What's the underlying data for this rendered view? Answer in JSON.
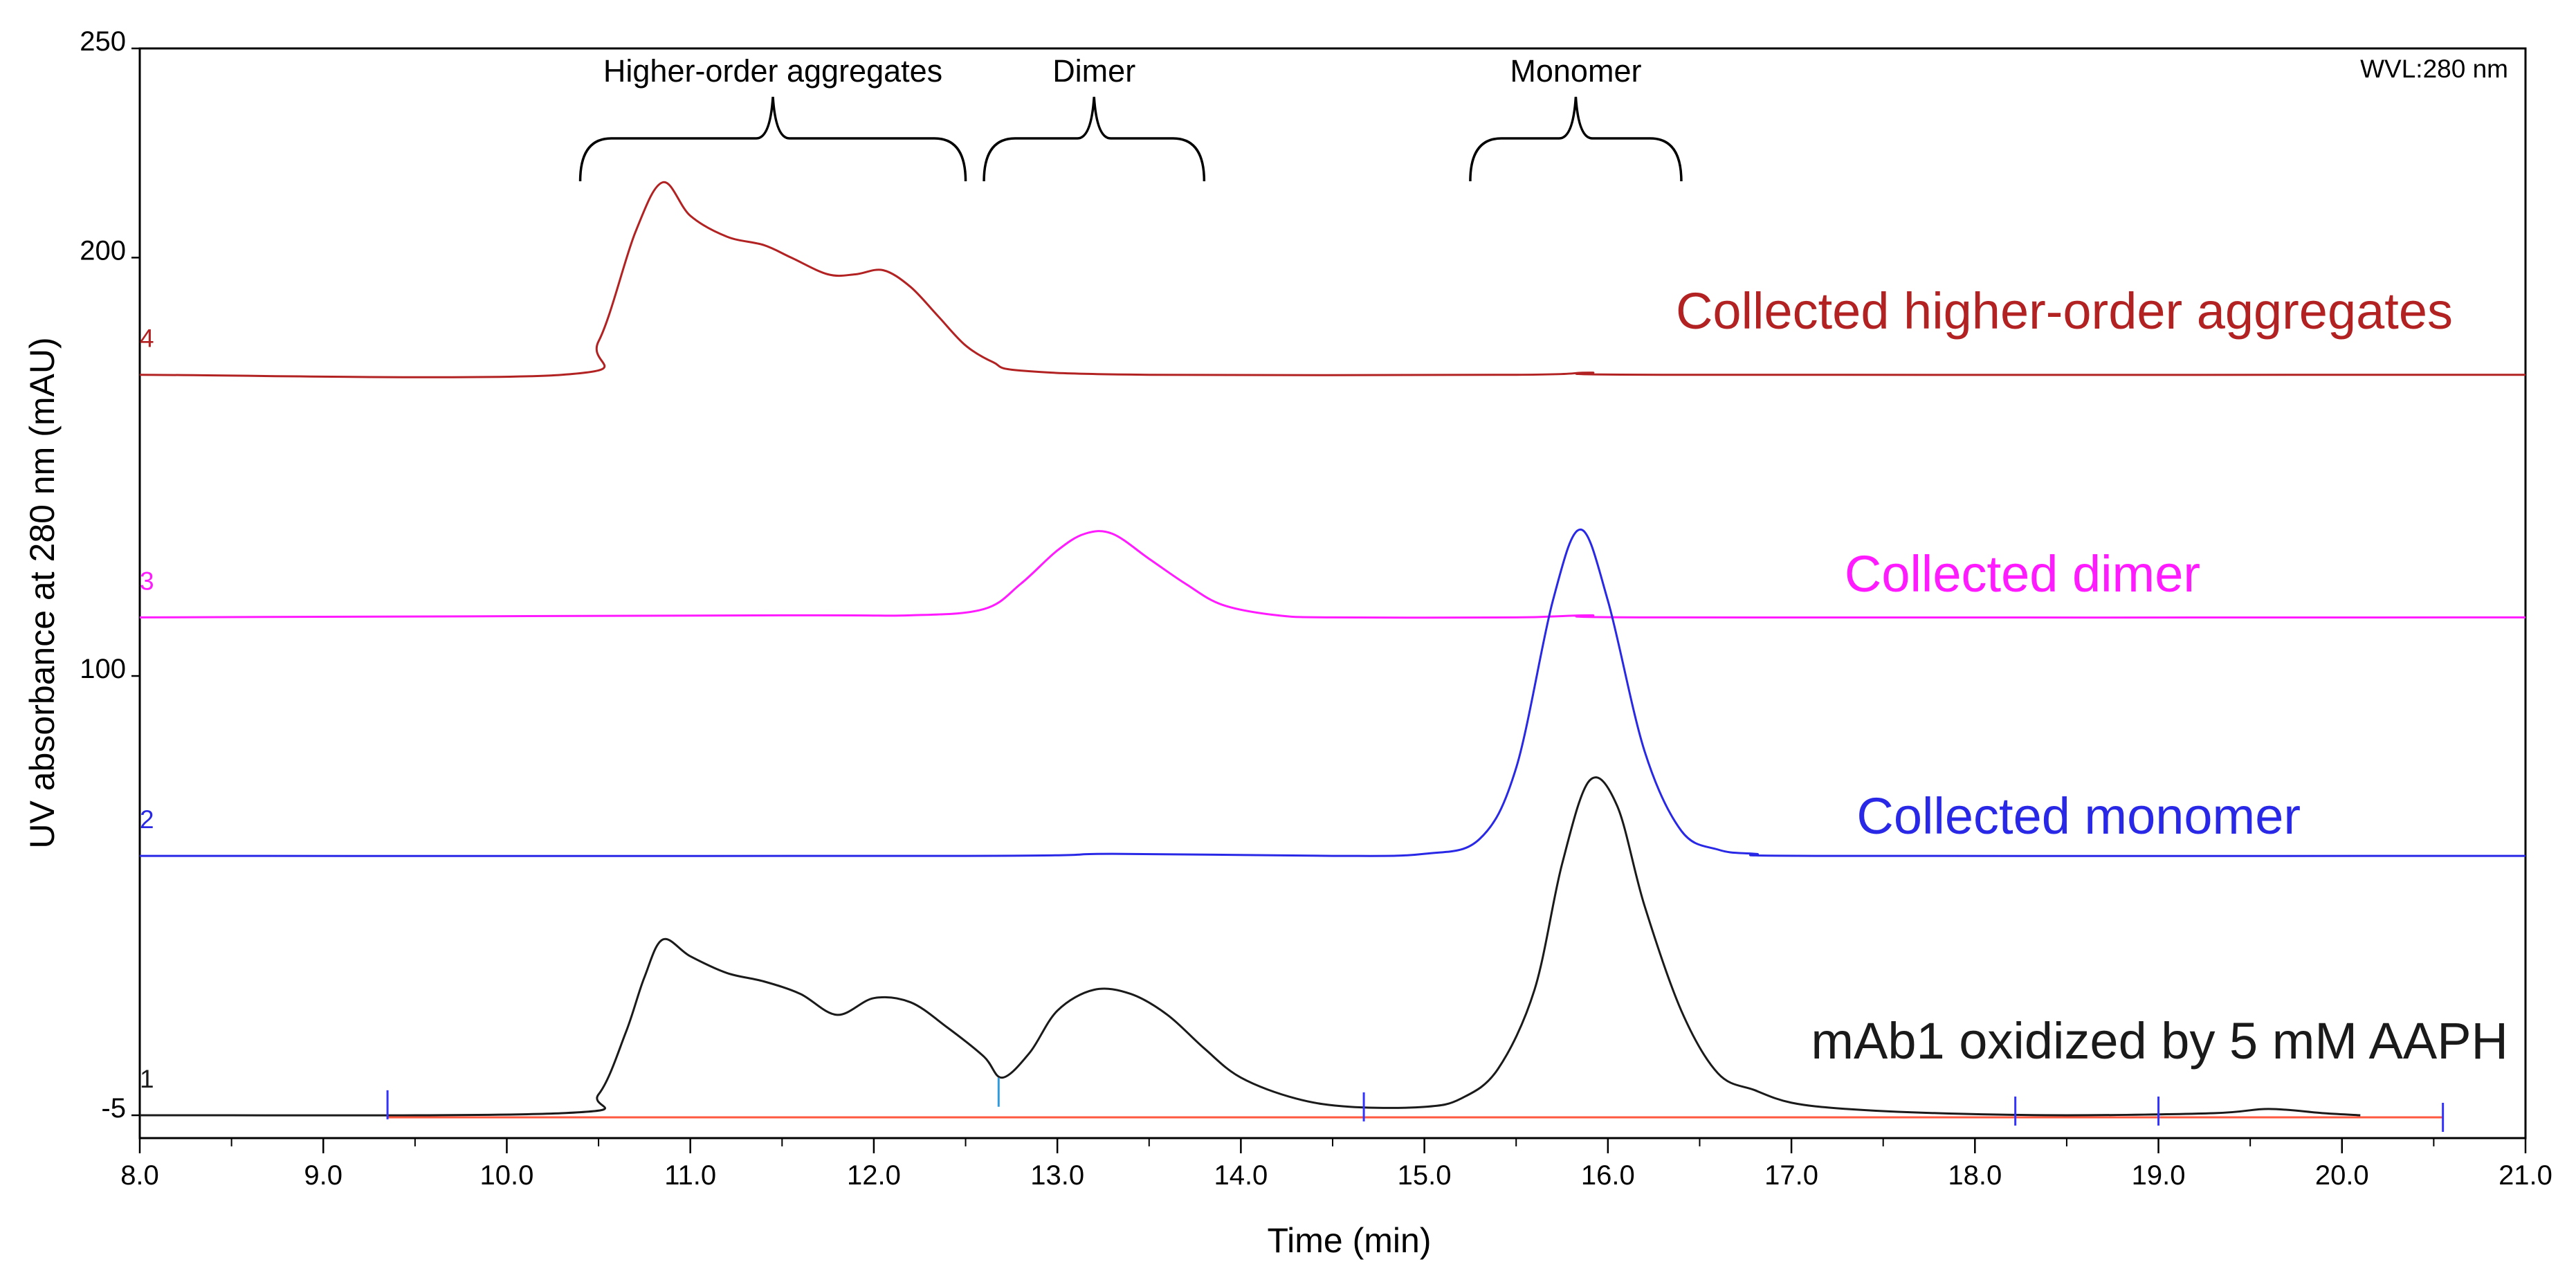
{
  "chart_data": {
    "type": "line",
    "title": "",
    "xlabel": "Time (min)",
    "ylabel": "UV absorbance at 280 nm (mAU)",
    "xlim": [
      8.0,
      21.0
    ],
    "ylim": [
      -5,
      250
    ],
    "x_ticks": [
      "8.0",
      "9.0",
      "10.0",
      "11.0",
      "12.0",
      "13.0",
      "14.0",
      "15.0",
      "16.0",
      "17.0",
      "18.0",
      "19.0",
      "20.0",
      "21.0"
    ],
    "y_ticks": [
      "250",
      "200",
      "100",
      "-5"
    ],
    "wavelength_label": "WVL:280 nm",
    "brackets": [
      {
        "label": "Higher-order aggregates",
        "start": 10.4,
        "end": 12.5
      },
      {
        "label": "Dimer",
        "start": 12.6,
        "end": 13.8
      },
      {
        "label": "Monomer",
        "start": 15.25,
        "end": 16.4
      }
    ],
    "series": [
      {
        "name": "Collected higher-order aggregates",
        "trace_number": "4",
        "color": "#b22222",
        "baseline": 172,
        "x": [
          8.0,
          10.3,
          10.5,
          10.7,
          10.85,
          11.0,
          11.2,
          11.4,
          11.55,
          11.75,
          11.9,
          12.05,
          12.2,
          12.35,
          12.5,
          12.65,
          12.8,
          13.5,
          15.5,
          15.9,
          16.3,
          21.0
        ],
        "values": [
          172,
          172,
          180,
          206,
          218,
          210,
          205,
          203,
          200,
          196,
          196,
          197,
          193,
          186,
          179,
          175,
          173,
          172,
          172,
          172.5,
          172,
          172
        ]
      },
      {
        "name": "Collected dimer",
        "trace_number": "3",
        "color": "#ff1aff",
        "baseline": 114,
        "x": [
          8.0,
          11.5,
          12.2,
          12.6,
          12.8,
          13.0,
          13.15,
          13.3,
          13.5,
          13.7,
          13.9,
          14.2,
          14.5,
          15.5,
          15.9,
          16.3,
          21.0
        ],
        "values": [
          114,
          114.5,
          114.5,
          116,
          122,
          130,
          134,
          134,
          128,
          122,
          117,
          114.5,
          114,
          114,
          114.5,
          114,
          114
        ]
      },
      {
        "name": "Collected monomer",
        "trace_number": "2",
        "color": "#2828e6",
        "baseline": 57,
        "x": [
          8.0,
          12.5,
          13.3,
          14.5,
          15.0,
          15.3,
          15.5,
          15.7,
          15.85,
          16.0,
          16.2,
          16.4,
          16.6,
          16.8,
          17.2,
          21.0
        ],
        "values": [
          57,
          57,
          57.5,
          57,
          57.5,
          61,
          78,
          118,
          135,
          118,
          82,
          63,
          58.5,
          57.5,
          57,
          57
        ]
      },
      {
        "name": "mAb1 oxidized by 5 mM AAPH",
        "trace_number": "1",
        "color": "#1a1a1a",
        "baseline": -5,
        "x": [
          8.0,
          10.3,
          10.5,
          10.65,
          10.75,
          10.85,
          11.0,
          11.2,
          11.4,
          11.6,
          11.8,
          12.0,
          12.2,
          12.4,
          12.6,
          12.7,
          12.85,
          13.0,
          13.2,
          13.4,
          13.6,
          13.8,
          14.0,
          14.3,
          14.6,
          15.0,
          15.2,
          15.4,
          15.6,
          15.75,
          15.9,
          16.05,
          16.2,
          16.4,
          16.6,
          16.8,
          17.0,
          17.3,
          17.8,
          18.5,
          19.3,
          19.6,
          19.9,
          20.1
        ],
        "values": [
          -5,
          -4.5,
          0,
          15,
          28,
          37,
          33,
          29,
          27,
          24,
          19,
          23,
          22,
          16,
          9,
          4,
          10,
          20,
          25,
          24,
          19,
          11,
          4,
          -1,
          -3,
          -3,
          -1,
          6,
          25,
          55,
          75,
          69,
          45,
          20,
          5,
          1,
          -2,
          -3.5,
          -4.5,
          -5,
          -4.5,
          -3.5,
          -4.5,
          -5
        ]
      }
    ],
    "reference_line": {
      "name": "baseline marker line",
      "color": "#ff5a40",
      "x_start": 9.35,
      "x_end": 20.55,
      "y": -5
    },
    "peak_markers": [
      {
        "x": 9.35,
        "color": "#3333ff",
        "y": -2
      },
      {
        "x": 12.68,
        "color": "#2f9bdc",
        "y": 1
      },
      {
        "x": 14.67,
        "color": "#3333ff",
        "y": -2.5
      },
      {
        "x": 18.22,
        "color": "#3333ff",
        "y": -3.5
      },
      {
        "x": 19.0,
        "color": "#3333ff",
        "y": -3.5
      },
      {
        "x": 20.55,
        "color": "#3333ff",
        "y": -5
      }
    ]
  }
}
